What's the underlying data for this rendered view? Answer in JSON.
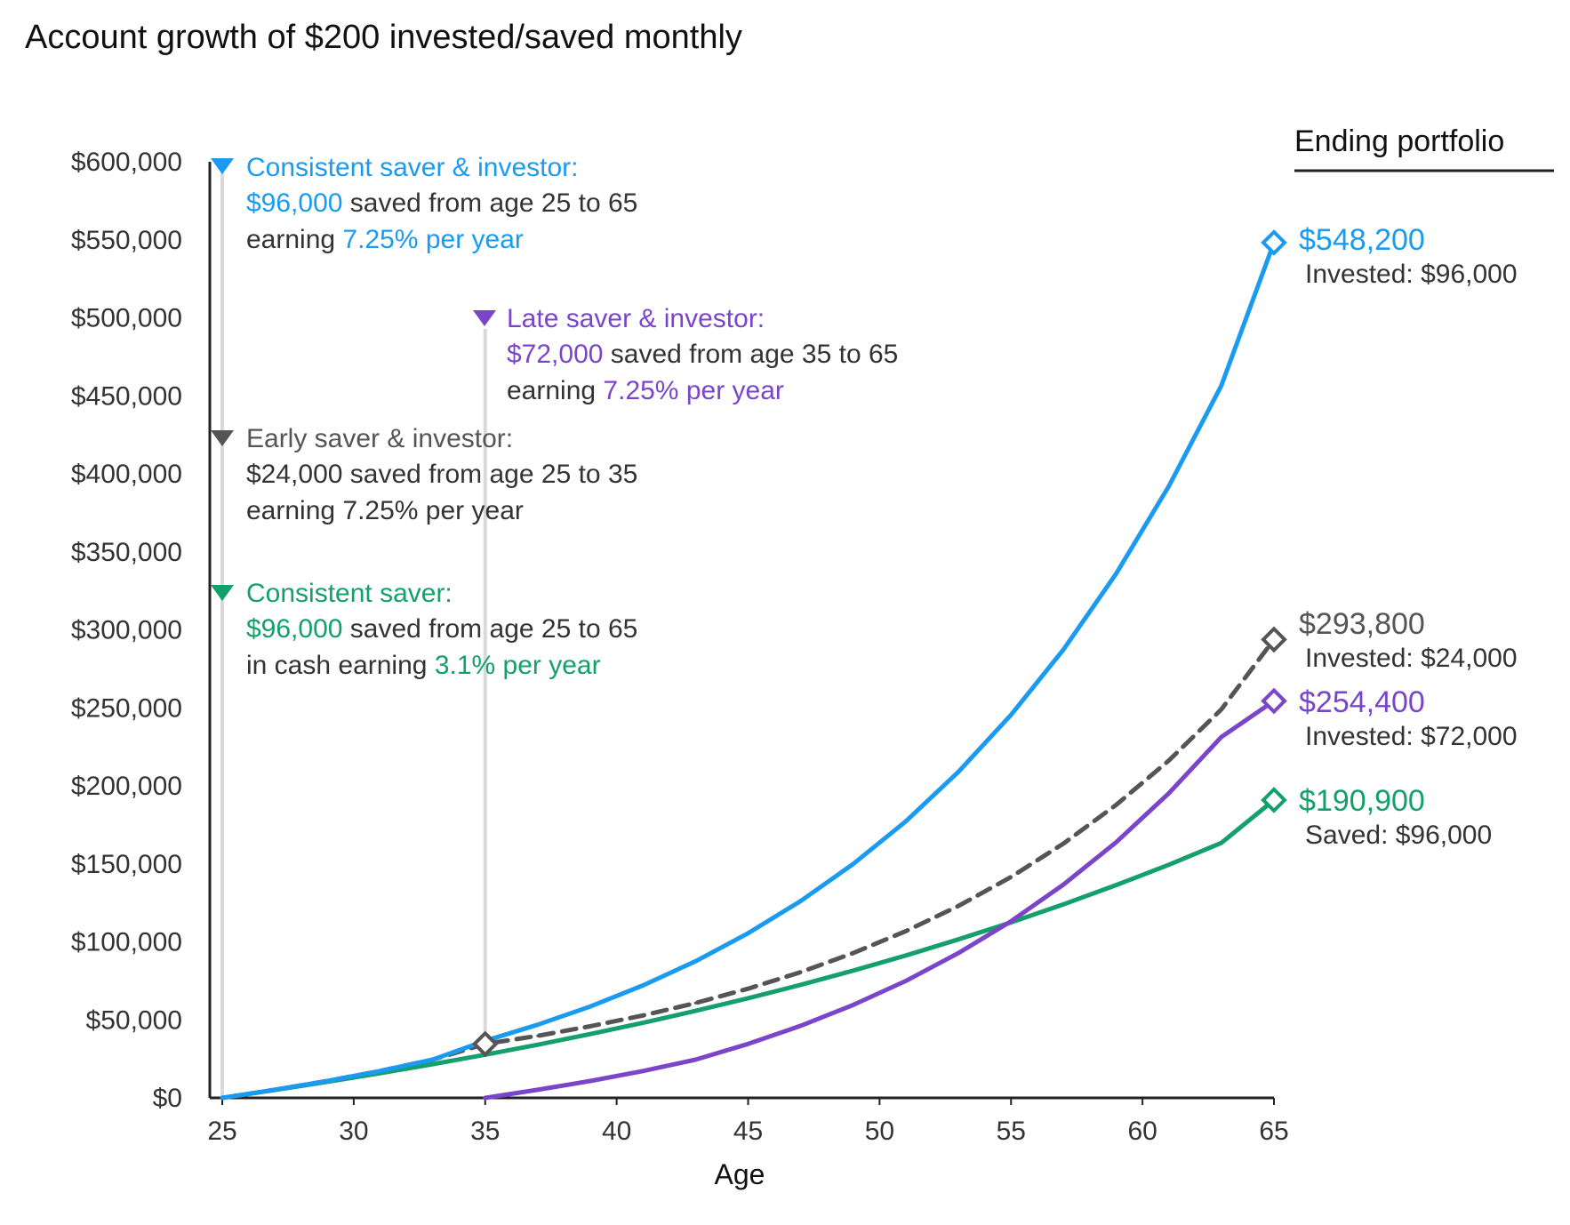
{
  "chart_data": {
    "type": "line",
    "title": "Account growth of $200 invested/saved monthly",
    "xlabel": "Age",
    "ylabel": "",
    "xlim": [
      25,
      65
    ],
    "ylim": [
      0,
      600000
    ],
    "x_ticks": [
      25,
      30,
      35,
      40,
      45,
      50,
      55,
      60,
      65
    ],
    "x_tick_labels": [
      "25",
      "30",
      "35",
      "40",
      "45",
      "50",
      "55",
      "60",
      "65"
    ],
    "y_ticks": [
      0,
      50000,
      100000,
      150000,
      200000,
      250000,
      300000,
      350000,
      400000,
      450000,
      500000,
      550000,
      600000
    ],
    "y_tick_labels": [
      "$0",
      "$50,000",
      "$100,000",
      "$150,000",
      "$200,000",
      "$250,000",
      "$300,000",
      "$350,000",
      "$400,000",
      "$450,000",
      "$500,000",
      "$550,000",
      "$600,000"
    ],
    "grid": false,
    "ending_header": "Ending portfolio",
    "series": [
      {
        "key": "consistent_investor",
        "color": "#1a9bf0",
        "dash": false,
        "x": [
          25,
          27,
          29,
          31,
          33,
          35,
          37,
          39,
          41,
          43,
          45,
          47,
          49,
          51,
          53,
          55,
          57,
          59,
          61,
          63,
          65
        ],
        "y": [
          0,
          5200,
          10800,
          17200,
          24500,
          36600,
          46900,
          58600,
          72100,
          87600,
          105500,
          126200,
          150000,
          177300,
          209000,
          245500,
          287500,
          336000,
          392000,
          456500,
          548200
        ],
        "annotation": {
          "marker_color": "#1a9bf0",
          "title": "Consistent saver & investor:",
          "line2_highlight": "$96,000",
          "line2_rest": " saved from age 25 to 65",
          "line3_prefix": "earning ",
          "line3_highlight": "7.25% per year"
        },
        "end_label": {
          "value": "$548,200",
          "sub": "Invested: $96,000"
        }
      },
      {
        "key": "early_investor",
        "color": "#555555",
        "dash": true,
        "x": [
          25,
          27,
          29,
          31,
          33,
          35,
          37,
          39,
          41,
          43,
          45,
          47,
          49,
          51,
          53,
          55,
          57,
          59,
          61,
          63,
          65
        ],
        "y": [
          0,
          5200,
          10800,
          17200,
          24500,
          34600,
          39800,
          45900,
          52800,
          60800,
          70000,
          80600,
          92800,
          106900,
          123000,
          141600,
          163100,
          187800,
          216200,
          249000,
          293800
        ],
        "annotation": {
          "marker_color": "#555555",
          "title": "Early saver & investor:",
          "line2_highlight": "",
          "line2_rest": "$24,000 saved from age 25 to 35",
          "line3_prefix": "earning 7.25% per year",
          "line3_highlight": ""
        },
        "end_label": {
          "value": "$293,800",
          "sub": "Invested: $24,000"
        }
      },
      {
        "key": "late_investor",
        "color": "#7a45c8",
        "dash": false,
        "x": [
          35,
          37,
          39,
          41,
          43,
          45,
          47,
          49,
          51,
          53,
          55,
          57,
          59,
          61,
          63,
          65
        ],
        "y": [
          0,
          5200,
          10800,
          17200,
          24500,
          34600,
          46200,
          59600,
          75000,
          92800,
          113200,
          136800,
          163900,
          195200,
          231300,
          254400
        ],
        "annotation": {
          "marker_color": "#7a45c8",
          "title": "Late saver & investor:",
          "line2_highlight": "$72,000",
          "line2_rest": " saved from age 35 to 65",
          "line3_prefix": "earning ",
          "line3_highlight": "7.25% per year"
        },
        "end_label": {
          "value": "$254,400",
          "sub": "Invested: $72,000"
        }
      },
      {
        "key": "consistent_saver",
        "color": "#14a06a",
        "dash": false,
        "x": [
          25,
          27,
          29,
          31,
          33,
          35,
          37,
          39,
          41,
          43,
          45,
          47,
          49,
          51,
          53,
          55,
          57,
          59,
          61,
          63,
          65
        ],
        "y": [
          0,
          5000,
          10300,
          15800,
          21600,
          27700,
          34100,
          40900,
          48100,
          55800,
          63900,
          72500,
          81600,
          91300,
          101600,
          112500,
          124100,
          136400,
          149400,
          163400,
          190900
        ],
        "annotation": {
          "marker_color": "#14a06a",
          "title": "Consistent saver:",
          "line2_highlight": "$96,000",
          "line2_rest": " saved from age 25 to 65",
          "line3_prefix": "in cash earning ",
          "line3_highlight": "3.1% per year"
        },
        "end_label": {
          "value": "$190,900",
          "sub": "Saved: $96,000"
        }
      }
    ]
  }
}
